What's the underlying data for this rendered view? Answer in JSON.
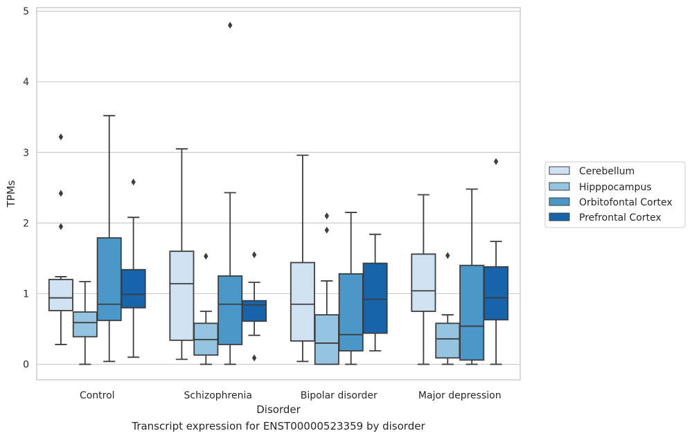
{
  "caption": "Transcript expression for ENST00000523359 by disorder",
  "chart_data": {
    "type": "box",
    "xlabel": "Disorder",
    "ylabel": "TPMs",
    "ylim": [
      -0.22,
      5.05
    ],
    "yticks": [
      0,
      1,
      2,
      3,
      4,
      5
    ],
    "grid": "horizontal",
    "legend_position": "right",
    "categories": [
      "Control",
      "Schizophrenia",
      "Bipolar disorder",
      "Major depression"
    ],
    "series": [
      {
        "name": "Cerebellum",
        "color": "#d0e1f2",
        "boxes": [
          {
            "whislo": 0.28,
            "q1": 0.76,
            "med": 0.94,
            "q3": 1.2,
            "whishi": 1.24,
            "fliers": [
              1.95,
              2.42,
              3.22
            ]
          },
          {
            "whislo": 0.07,
            "q1": 0.34,
            "med": 1.14,
            "q3": 1.6,
            "whishi": 3.05,
            "fliers": []
          },
          {
            "whislo": 0.04,
            "q1": 0.33,
            "med": 0.85,
            "q3": 1.44,
            "whishi": 2.96,
            "fliers": []
          },
          {
            "whislo": 0.0,
            "q1": 0.75,
            "med": 1.04,
            "q3": 1.56,
            "whishi": 2.4,
            "fliers": []
          }
        ]
      },
      {
        "name": "Hipppocampus",
        "color": "#94c4df",
        "boxes": [
          {
            "whislo": 0.0,
            "q1": 0.39,
            "med": 0.59,
            "q3": 0.74,
            "whishi": 1.17,
            "fliers": []
          },
          {
            "whislo": 0.0,
            "q1": 0.13,
            "med": 0.35,
            "q3": 0.58,
            "whishi": 0.75,
            "fliers": [
              1.53
            ]
          },
          {
            "whislo": 0.0,
            "q1": 0.0,
            "med": 0.3,
            "q3": 0.7,
            "whishi": 1.18,
            "fliers": [
              1.9,
              2.1
            ]
          },
          {
            "whislo": 0.0,
            "q1": 0.09,
            "med": 0.36,
            "q3": 0.58,
            "whishi": 0.7,
            "fliers": [
              1.54
            ]
          }
        ]
      },
      {
        "name": "Orbitofontal Cortex",
        "color": "#4a98c9",
        "boxes": [
          {
            "whislo": 0.04,
            "q1": 0.62,
            "med": 0.85,
            "q3": 1.79,
            "whishi": 3.52,
            "fliers": []
          },
          {
            "whislo": 0.0,
            "q1": 0.28,
            "med": 0.85,
            "q3": 1.25,
            "whishi": 2.43,
            "fliers": [
              4.8
            ]
          },
          {
            "whislo": 0.0,
            "q1": 0.19,
            "med": 0.42,
            "q3": 1.28,
            "whishi": 2.15,
            "fliers": []
          },
          {
            "whislo": 0.0,
            "q1": 0.06,
            "med": 0.54,
            "q3": 1.4,
            "whishi": 2.48,
            "fliers": []
          }
        ]
      },
      {
        "name": "Prefrontal Cortex",
        "color": "#1764ab",
        "boxes": [
          {
            "whislo": 0.1,
            "q1": 0.8,
            "med": 0.99,
            "q3": 1.34,
            "whishi": 2.08,
            "fliers": [
              2.58
            ]
          },
          {
            "whislo": 0.41,
            "q1": 0.61,
            "med": 0.84,
            "q3": 0.9,
            "whishi": 1.16,
            "fliers": [
              0.09,
              1.55
            ]
          },
          {
            "whislo": 0.19,
            "q1": 0.44,
            "med": 0.92,
            "q3": 1.43,
            "whishi": 1.84,
            "fliers": []
          },
          {
            "whislo": 0.0,
            "q1": 0.63,
            "med": 0.94,
            "q3": 1.38,
            "whishi": 1.74,
            "fliers": [
              2.87
            ]
          }
        ]
      }
    ]
  }
}
